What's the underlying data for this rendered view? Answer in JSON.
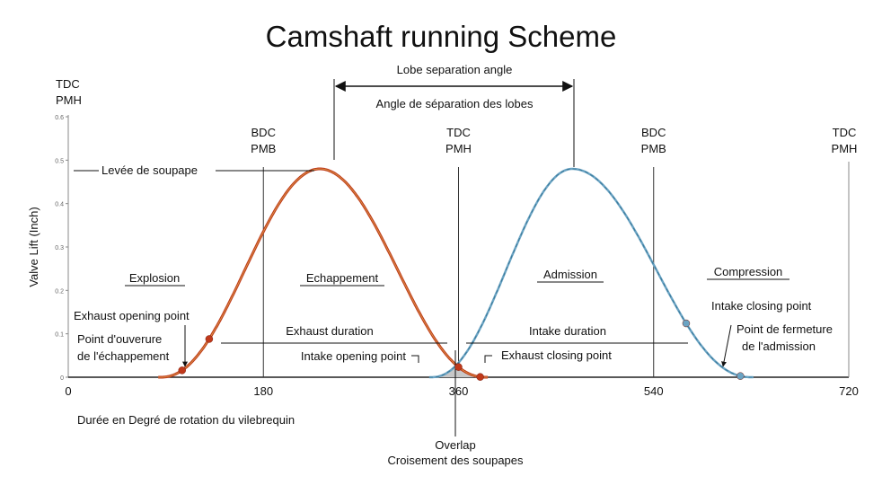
{
  "title": "Camshaft running Scheme",
  "y_axis": {
    "label": "Valve Lift (Inch)",
    "ticks": [
      {
        "value": 0,
        "label": "0"
      },
      {
        "value": 0.1,
        "label": "0.1"
      },
      {
        "value": 0.2,
        "label": "0.2"
      },
      {
        "value": 0.3,
        "label": "0.3"
      },
      {
        "value": 0.4,
        "label": "0.4"
      },
      {
        "value": 0.5,
        "label": "0.5"
      },
      {
        "value": 0.6,
        "label": "0.6"
      }
    ],
    "max": 0.6
  },
  "x_axis": {
    "caption": "Durée en Degré de rotation du vilebrequin",
    "ticks": [
      {
        "value": 0,
        "label": "0"
      },
      {
        "value": 180,
        "label": "180"
      },
      {
        "value": 360,
        "label": "360"
      },
      {
        "value": 540,
        "label": "540"
      },
      {
        "value": 720,
        "label": "720"
      }
    ]
  },
  "dead_centers": [
    {
      "deg": 0,
      "line1": "TDC",
      "line2": "PMH"
    },
    {
      "deg": 180,
      "line1": "BDC",
      "line2": "PMB"
    },
    {
      "deg": 360,
      "line1": "TDC",
      "line2": "PMH"
    },
    {
      "deg": 540,
      "line1": "BDC",
      "line2": "PMB"
    },
    {
      "deg": 720,
      "line1": "TDC",
      "line2": "PMH"
    }
  ],
  "phases": {
    "explosion": "Explosion",
    "echappement": "Echappement",
    "admission": "Admission",
    "compression": "Compression"
  },
  "lobe_separation": {
    "line1": "Lobe separation angle",
    "line2": "Angle de séparation des lobes"
  },
  "valve_lift_label": "Levée de soupape",
  "exhaust_duration": "Exhaust duration",
  "intake_duration": "Intake duration",
  "exhaust_opening": {
    "line1": "Exhaust opening point",
    "line2": "Point d'ouverure",
    "line3": "de l'échappement"
  },
  "intake_opening": "Intake opening point",
  "exhaust_closing": "Exhaust closing point",
  "intake_closing": {
    "line1": "Intake closing point",
    "line2": "Point de fermeture",
    "line3": "de l'admission"
  },
  "overlap": {
    "line1": "Overlap",
    "line2": "Croisement des soupapes"
  },
  "colors": {
    "exhaust": "#c0391b",
    "intake": "#6aa3c3",
    "overlap_fill": "#c8c8c8"
  },
  "chart_data": {
    "type": "line",
    "series": [
      {
        "name": "exhaust",
        "open_deg": 85,
        "peak_deg": 232,
        "close_deg": 385,
        "peak_lift": 0.48
      },
      {
        "name": "intake",
        "open_deg": 335,
        "peak_deg": 465,
        "close_deg": 630,
        "peak_lift": 0.48
      }
    ],
    "xlim": [
      0,
      720
    ],
    "ylim": [
      0,
      0.6
    ],
    "markers_deg": {
      "exhaust_opening": 105,
      "exhaust_duration_start": 130,
      "overlap_point": 360,
      "exhaust_closing": 380,
      "intake_duration_end": 570,
      "intake_closing": 620
    }
  }
}
